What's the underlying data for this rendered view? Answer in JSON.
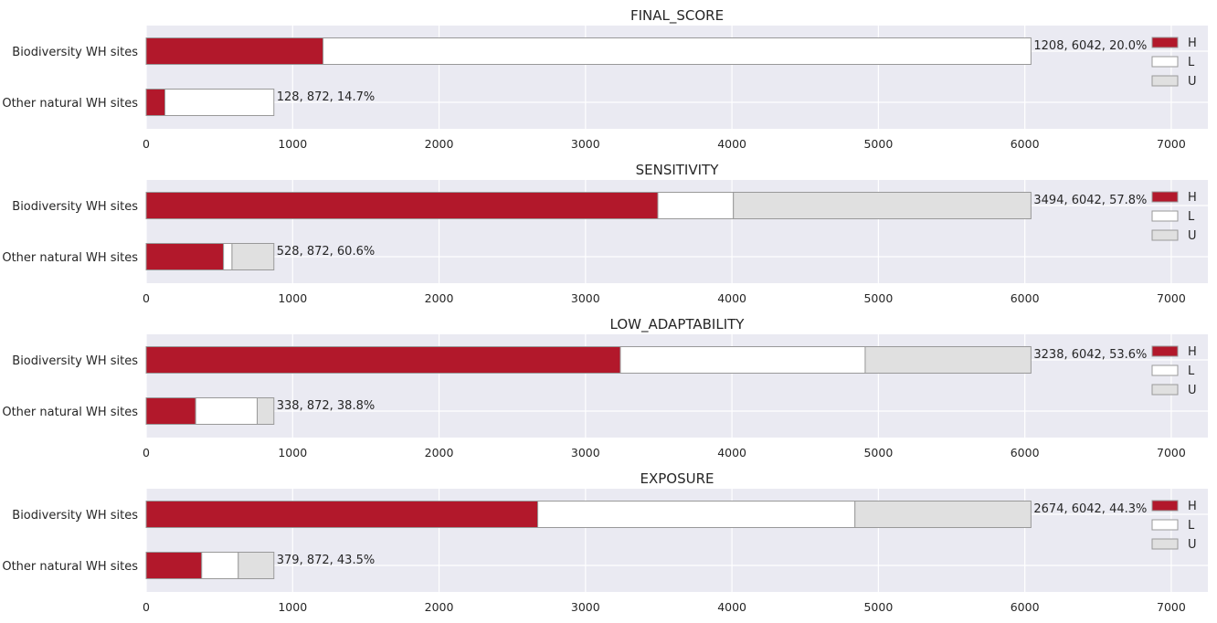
{
  "chart_data": [
    {
      "type": "bar",
      "orientation": "horizontal",
      "stacked": true,
      "title": "FINAL_SCORE",
      "categories": [
        "Biodiversity WH sites",
        "Other natural WH sites"
      ],
      "series": [
        {
          "name": "H",
          "values": [
            1208,
            128
          ]
        },
        {
          "name": "L",
          "values": [
            4834,
            744
          ]
        },
        {
          "name": "U",
          "values": [
            0,
            0
          ]
        }
      ],
      "bar_labels": [
        "1208, 6042, 20.0%",
        "128, 872, 14.7%"
      ],
      "xlim": [
        0,
        7250
      ],
      "xticks": [
        0,
        1000,
        2000,
        3000,
        4000,
        5000,
        6000,
        7000
      ],
      "grid": true,
      "legend": "top-right"
    },
    {
      "type": "bar",
      "orientation": "horizontal",
      "stacked": true,
      "title": "SENSITIVITY",
      "categories": [
        "Biodiversity WH sites",
        "Other natural WH sites"
      ],
      "series": [
        {
          "name": "H",
          "values": [
            3494,
            528
          ]
        },
        {
          "name": "L",
          "values": [
            516,
            58
          ]
        },
        {
          "name": "U",
          "values": [
            2032,
            286
          ]
        }
      ],
      "bar_labels": [
        "3494, 6042, 57.8%",
        "528, 872, 60.6%"
      ],
      "xlim": [
        0,
        7250
      ],
      "xticks": [
        0,
        1000,
        2000,
        3000,
        4000,
        5000,
        6000,
        7000
      ],
      "grid": true,
      "legend": "top-right"
    },
    {
      "type": "bar",
      "orientation": "horizontal",
      "stacked": true,
      "title": "LOW_ADAPTABILITY",
      "categories": [
        "Biodiversity WH sites",
        "Other natural WH sites"
      ],
      "series": [
        {
          "name": "H",
          "values": [
            3238,
            338
          ]
        },
        {
          "name": "L",
          "values": [
            1672,
            420
          ]
        },
        {
          "name": "U",
          "values": [
            1132,
            114
          ]
        }
      ],
      "bar_labels": [
        "3238, 6042, 53.6%",
        "338, 872, 38.8%"
      ],
      "xlim": [
        0,
        7250
      ],
      "xticks": [
        0,
        1000,
        2000,
        3000,
        4000,
        5000,
        6000,
        7000
      ],
      "grid": true,
      "legend": "top-right"
    },
    {
      "type": "bar",
      "orientation": "horizontal",
      "stacked": true,
      "title": "EXPOSURE",
      "categories": [
        "Biodiversity WH sites",
        "Other natural WH sites"
      ],
      "series": [
        {
          "name": "H",
          "values": [
            2674,
            379
          ]
        },
        {
          "name": "L",
          "values": [
            2166,
            250
          ]
        },
        {
          "name": "U",
          "values": [
            1202,
            243
          ]
        }
      ],
      "bar_labels": [
        "2674, 6042, 44.3%",
        "379, 872, 43.5%"
      ],
      "xlim": [
        0,
        7250
      ],
      "xticks": [
        0,
        1000,
        2000,
        3000,
        4000,
        5000,
        6000,
        7000
      ],
      "grid": true,
      "legend": "top-right"
    }
  ],
  "colors": {
    "H": "#b2182b",
    "L": "#ffffff",
    "U": "#e0e0e0",
    "plot_background": "#eaeaf2",
    "grid": "#ffffff",
    "bar_edge": "#999999",
    "text": "#262626"
  }
}
